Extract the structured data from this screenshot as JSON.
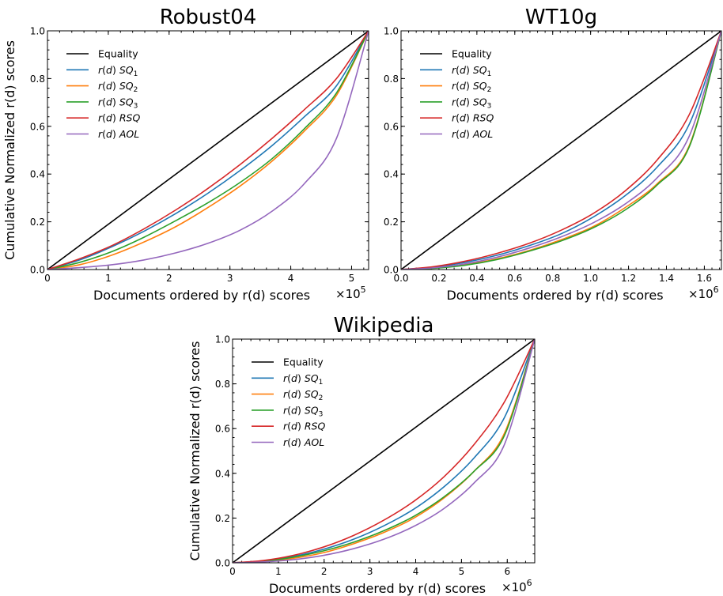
{
  "chart_data": [
    {
      "type": "line",
      "title": "Robust04",
      "xlabel": "Documents ordered by r(d) scores",
      "ylabel": "Cumulative Normalized r(d) scores",
      "x_multiplier": {
        "base": "×10",
        "exp": "5"
      },
      "xlim": [
        0,
        5.28
      ],
      "ylim": [
        0,
        1.0
      ],
      "xticks": [
        0,
        1,
        2,
        3,
        4,
        5
      ],
      "xtick_labels": [
        "0",
        "1",
        "2",
        "3",
        "4",
        "5"
      ],
      "yticks": [
        0,
        0.2,
        0.4,
        0.6,
        0.8,
        1.0
      ],
      "ytick_labels": [
        "0.0",
        "0.2",
        "0.4",
        "0.6",
        "0.8",
        "1.0"
      ],
      "legend_position": "top-left",
      "x": [
        0,
        0.528,
        1.056,
        1.584,
        2.112,
        2.64,
        3.168,
        3.696,
        4.224,
        4.752,
        5.28
      ],
      "series": [
        {
          "name": "Equality",
          "main": "Equality",
          "sub": "",
          "color": "#000000",
          "values": [
            0,
            0.1,
            0.2,
            0.3,
            0.4,
            0.5,
            0.6,
            0.7,
            0.8,
            0.9,
            1.0
          ]
        },
        {
          "name": "r(d) SQ1",
          "main": "r(d) SQ",
          "sub": "1",
          "color": "#1f77b4",
          "values": [
            0,
            0.04,
            0.095,
            0.16,
            0.235,
            0.32,
            0.415,
            0.52,
            0.64,
            0.77,
            1.0
          ]
        },
        {
          "name": "r(d) SQ2",
          "main": "r(d) SQ",
          "sub": "2",
          "color": "#ff7f0e",
          "values": [
            0,
            0.02,
            0.06,
            0.115,
            0.18,
            0.26,
            0.35,
            0.455,
            0.58,
            0.73,
            1.0
          ]
        },
        {
          "name": "r(d) SQ3",
          "main": "r(d) SQ",
          "sub": "3",
          "color": "#2ca02c",
          "values": [
            0,
            0.03,
            0.075,
            0.135,
            0.205,
            0.28,
            0.365,
            0.465,
            0.59,
            0.74,
            1.0
          ]
        },
        {
          "name": "r(d) RSQ",
          "main": "r(d) RSQ",
          "sub": "",
          "color": "#d62728",
          "values": [
            0,
            0.045,
            0.1,
            0.17,
            0.25,
            0.34,
            0.44,
            0.55,
            0.67,
            0.8,
            1.0
          ]
        },
        {
          "name": "r(d) AOL",
          "main": "r(d) AOL",
          "sub": "",
          "color": "#9467bd",
          "values": [
            0,
            0.008,
            0.02,
            0.04,
            0.07,
            0.11,
            0.165,
            0.245,
            0.36,
            0.55,
            1.0
          ]
        }
      ]
    },
    {
      "type": "line",
      "title": "WT10g",
      "xlabel": "Documents ordered by r(d) scores",
      "ylabel": "",
      "x_multiplier": {
        "base": "×10",
        "exp": "6"
      },
      "xlim": [
        0,
        1.69
      ],
      "ylim": [
        0,
        1.0
      ],
      "xticks": [
        0,
        0.2,
        0.4,
        0.6,
        0.8,
        1.0,
        1.2,
        1.4,
        1.6
      ],
      "xtick_labels": [
        "0.0",
        "0.2",
        "0.4",
        "0.6",
        "0.8",
        "1.0",
        "1.2",
        "1.4",
        "1.6"
      ],
      "yticks": [
        0,
        0.2,
        0.4,
        0.6,
        0.8,
        1.0
      ],
      "ytick_labels": [
        "0.0",
        "0.2",
        "0.4",
        "0.6",
        "0.8",
        "1.0"
      ],
      "legend_position": "top-left",
      "x": [
        0,
        0.169,
        0.338,
        0.507,
        0.676,
        0.845,
        1.014,
        1.183,
        1.352,
        1.521,
        1.69
      ],
      "series": [
        {
          "name": "Equality",
          "main": "Equality",
          "sub": "",
          "color": "#000000",
          "values": [
            0,
            0.1,
            0.2,
            0.3,
            0.4,
            0.5,
            0.6,
            0.7,
            0.8,
            0.9,
            1.0
          ]
        },
        {
          "name": "r(d) SQ1",
          "main": "r(d) SQ",
          "sub": "1",
          "color": "#1f77b4",
          "values": [
            0,
            0.01,
            0.03,
            0.06,
            0.1,
            0.15,
            0.22,
            0.31,
            0.43,
            0.61,
            1.0
          ]
        },
        {
          "name": "r(d) SQ2",
          "main": "r(d) SQ",
          "sub": "2",
          "color": "#ff7f0e",
          "values": [
            0,
            0.006,
            0.02,
            0.045,
            0.08,
            0.125,
            0.18,
            0.26,
            0.36,
            0.52,
            1.0
          ]
        },
        {
          "name": "r(d) SQ3",
          "main": "r(d) SQ",
          "sub": "3",
          "color": "#2ca02c",
          "values": [
            0,
            0.005,
            0.018,
            0.042,
            0.077,
            0.12,
            0.175,
            0.25,
            0.355,
            0.515,
            1.0
          ]
        },
        {
          "name": "r(d) RSQ",
          "main": "r(d) RSQ",
          "sub": "",
          "color": "#d62728",
          "values": [
            0,
            0.012,
            0.035,
            0.068,
            0.11,
            0.165,
            0.235,
            0.33,
            0.46,
            0.65,
            1.0
          ]
        },
        {
          "name": "r(d) AOL",
          "main": "r(d) AOL",
          "sub": "",
          "color": "#9467bd",
          "values": [
            0,
            0.007,
            0.024,
            0.052,
            0.09,
            0.137,
            0.196,
            0.275,
            0.385,
            0.56,
            1.0
          ]
        }
      ]
    },
    {
      "type": "line",
      "title": "Wikipedia",
      "xlabel": "Documents ordered by r(d) scores",
      "ylabel": "Cumulative Normalized r(d) scores",
      "x_multiplier": {
        "base": "×10",
        "exp": "6"
      },
      "xlim": [
        0,
        6.6
      ],
      "ylim": [
        0,
        1.0
      ],
      "xticks": [
        0,
        1,
        2,
        3,
        4,
        5,
        6
      ],
      "xtick_labels": [
        "0",
        "1",
        "2",
        "3",
        "4",
        "5",
        "6"
      ],
      "yticks": [
        0,
        0.2,
        0.4,
        0.6,
        0.8,
        1.0
      ],
      "ytick_labels": [
        "0.0",
        "0.2",
        "0.4",
        "0.6",
        "0.8",
        "1.0"
      ],
      "legend_position": "top-left",
      "x": [
        0,
        0.66,
        1.32,
        1.98,
        2.64,
        3.3,
        3.96,
        4.62,
        5.28,
        5.94,
        6.6
      ],
      "series": [
        {
          "name": "Equality",
          "main": "Equality",
          "sub": "",
          "color": "#000000",
          "values": [
            0,
            0.1,
            0.2,
            0.3,
            0.4,
            0.5,
            0.6,
            0.7,
            0.8,
            0.9,
            1.0
          ]
        },
        {
          "name": "r(d) SQ1",
          "main": "r(d) SQ",
          "sub": "1",
          "color": "#1f77b4",
          "values": [
            0,
            0.008,
            0.028,
            0.06,
            0.105,
            0.165,
            0.24,
            0.34,
            0.47,
            0.65,
            1.0
          ]
        },
        {
          "name": "r(d) SQ2",
          "main": "r(d) SQ",
          "sub": "2",
          "color": "#ff7f0e",
          "values": [
            0,
            0.006,
            0.02,
            0.045,
            0.085,
            0.135,
            0.2,
            0.29,
            0.41,
            0.58,
            1.0
          ]
        },
        {
          "name": "r(d) SQ3",
          "main": "r(d) SQ",
          "sub": "3",
          "color": "#2ca02c",
          "values": [
            0,
            0.007,
            0.025,
            0.053,
            0.092,
            0.143,
            0.208,
            0.295,
            0.41,
            0.57,
            1.0
          ]
        },
        {
          "name": "r(d) RSQ",
          "main": "r(d) RSQ",
          "sub": "",
          "color": "#d62728",
          "values": [
            0,
            0.01,
            0.033,
            0.07,
            0.122,
            0.19,
            0.275,
            0.385,
            0.53,
            0.72,
            1.0
          ]
        },
        {
          "name": "r(d) AOL",
          "main": "r(d) AOL",
          "sub": "",
          "color": "#9467bd",
          "values": [
            0,
            0.004,
            0.014,
            0.033,
            0.063,
            0.105,
            0.163,
            0.243,
            0.358,
            0.53,
            1.0
          ]
        }
      ]
    }
  ]
}
